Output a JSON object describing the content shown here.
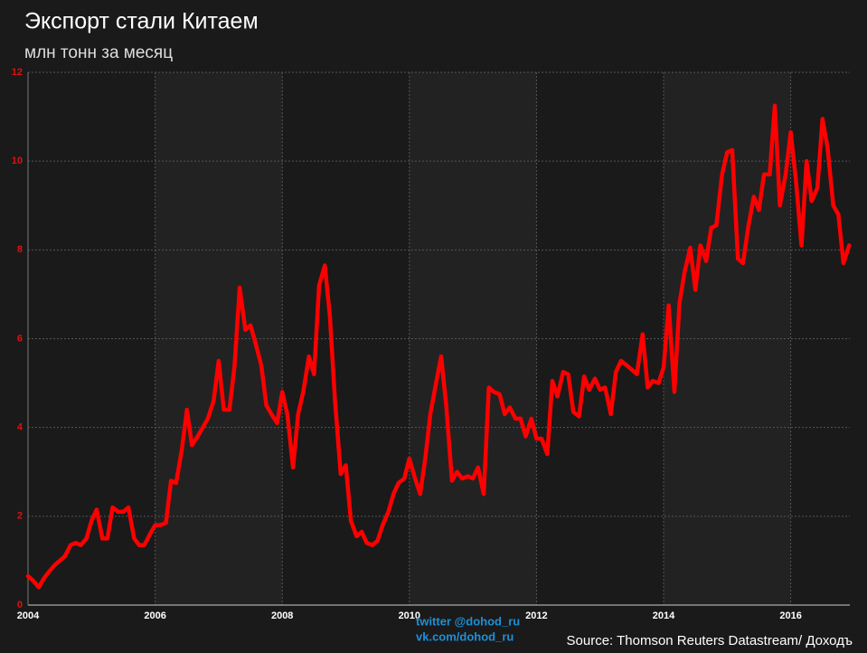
{
  "chart_data": {
    "type": "line",
    "title": "Экспорт стали Китаем",
    "subtitle": "млн тонн за месяц",
    "source": "Source: Thomson Reuters Datastream/ Доходъ",
    "watermark": [
      "twitter @dohod_ru",
      "vk.com/dohod_ru"
    ],
    "color": "#ff0000",
    "x": [
      2004,
      2004.08,
      2004.17,
      2004.25,
      2004.33,
      2004.42,
      2004.5,
      2004.58,
      2004.67,
      2004.75,
      2004.83,
      2004.92,
      2005,
      2005.08,
      2005.17,
      2005.25,
      2005.33,
      2005.42,
      2005.5,
      2005.58,
      2005.67,
      2005.75,
      2005.83,
      2005.92,
      2006,
      2006.08,
      2006.17,
      2006.25,
      2006.33,
      2006.42,
      2006.5,
      2006.58,
      2006.67,
      2006.75,
      2006.83,
      2006.92,
      2007,
      2007.08,
      2007.17,
      2007.25,
      2007.33,
      2007.42,
      2007.5,
      2007.58,
      2007.67,
      2007.75,
      2007.83,
      2007.92,
      2008,
      2008.08,
      2008.17,
      2008.25,
      2008.33,
      2008.42,
      2008.5,
      2008.58,
      2008.67,
      2008.75,
      2008.83,
      2008.92,
      2009,
      2009.08,
      2009.17,
      2009.25,
      2009.33,
      2009.42,
      2009.5,
      2009.58,
      2009.67,
      2009.75,
      2009.83,
      2009.92,
      2010,
      2010.08,
      2010.17,
      2010.25,
      2010.33,
      2010.42,
      2010.5,
      2010.58,
      2010.67,
      2010.75,
      2010.83,
      2010.92,
      2011,
      2011.08,
      2011.17,
      2011.25,
      2011.33,
      2011.42,
      2011.5,
      2011.58,
      2011.67,
      2011.75,
      2011.83,
      2011.92,
      2012,
      2012.08,
      2012.17,
      2012.25,
      2012.33,
      2012.42,
      2012.5,
      2012.58,
      2012.67,
      2012.75,
      2012.83,
      2012.92,
      2013,
      2013.08,
      2013.17,
      2013.25,
      2013.33,
      2013.42,
      2013.5,
      2013.58,
      2013.67,
      2013.75,
      2013.83,
      2013.92,
      2014,
      2014.08,
      2014.17,
      2014.25,
      2014.33,
      2014.42,
      2014.5,
      2014.58,
      2014.67,
      2014.75,
      2014.83,
      2014.92,
      2015,
      2015.08,
      2015.17,
      2015.25,
      2015.33,
      2015.42,
      2015.5,
      2015.58,
      2015.67,
      2015.75,
      2015.83,
      2015.92,
      2016,
      2016.08,
      2016.17,
      2016.25,
      2016.33,
      2016.42,
      2016.5,
      2016.58,
      2016.67,
      2016.75,
      2016.83,
      2016.92
    ],
    "values": [
      0.65,
      0.55,
      0.4,
      0.6,
      0.75,
      0.9,
      1.0,
      1.1,
      1.35,
      1.4,
      1.35,
      1.5,
      1.9,
      2.15,
      1.5,
      1.5,
      2.2,
      2.1,
      2.1,
      2.2,
      1.5,
      1.35,
      1.35,
      1.6,
      1.8,
      1.8,
      1.85,
      2.8,
      2.75,
      3.5,
      4.4,
      3.6,
      3.8,
      4.0,
      4.2,
      4.6,
      5.5,
      4.4,
      4.4,
      5.4,
      7.15,
      6.2,
      6.3,
      5.9,
      5.4,
      4.5,
      4.3,
      4.1,
      4.8,
      4.3,
      3.1,
      4.3,
      4.8,
      5.6,
      5.2,
      7.2,
      7.65,
      6.5,
      4.6,
      2.95,
      3.15,
      1.9,
      1.55,
      1.65,
      1.4,
      1.35,
      1.45,
      1.8,
      2.1,
      2.5,
      2.75,
      2.85,
      3.3,
      2.9,
      2.5,
      3.3,
      4.3,
      5.0,
      5.6,
      4.5,
      2.8,
      3.0,
      2.85,
      2.9,
      2.85,
      3.1,
      2.5,
      4.9,
      4.8,
      4.75,
      4.3,
      4.45,
      4.2,
      4.2,
      3.8,
      4.2,
      3.75,
      3.75,
      3.4,
      5.05,
      4.7,
      5.25,
      5.2,
      4.35,
      4.25,
      5.15,
      4.85,
      5.1,
      4.85,
      4.9,
      4.3,
      5.25,
      5.5,
      5.4,
      5.3,
      5.2,
      6.1,
      4.9,
      5.05,
      5.0,
      5.35,
      6.75,
      4.8,
      6.8,
      7.5,
      8.05,
      7.1,
      8.1,
      7.75,
      8.5,
      8.55,
      9.7,
      10.2,
      10.25,
      7.8,
      7.7,
      8.5,
      9.2,
      8.9,
      9.7,
      9.7,
      11.25,
      9.0,
      9.7,
      10.65,
      9.6,
      8.1,
      10.0,
      9.1,
      9.4,
      10.95,
      10.3,
      9.0,
      8.8,
      7.7,
      8.1
    ],
    "xlim": [
      2004,
      2016.93
    ],
    "xticks": [
      2004,
      2006,
      2008,
      2010,
      2012,
      2014,
      2016
    ],
    "ylim": [
      0,
      12
    ],
    "yticks": [
      0,
      2,
      4,
      6,
      8,
      10,
      12
    ],
    "grid": true
  }
}
